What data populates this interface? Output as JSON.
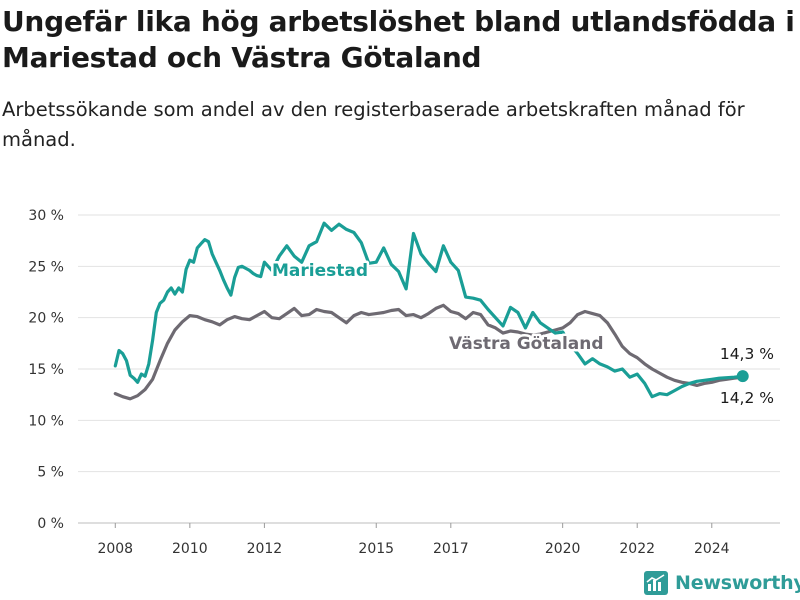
{
  "title": "Ungefär lika hög arbetslöshet bland utlandsfödda i Mariestad och Västra Götaland",
  "subtitle": "Arbetssökande som andel av den registerbaserade arbetskraften månad för månad.",
  "brand": "Newsworthy",
  "colors": {
    "mariestad": "#1a9e96",
    "vastra": "#6e6a72",
    "grid": "#e2e2e2",
    "brand": "#2f9c98"
  },
  "chart_data": {
    "type": "line",
    "title": "Ungefär lika hög arbetslöshet bland utlandsfödda i Mariestad och Västra Götaland",
    "subtitle": "Arbetssökande som andel av den registerbaserade arbetskraften månad för månad.",
    "xlim": [
      2007.0,
      2025.83
    ],
    "ylim": [
      0,
      30
    ],
    "y_ticks": [
      0,
      5,
      10,
      15,
      20,
      25,
      30
    ],
    "y_tick_labels": [
      "0 %",
      "5 %",
      "10 %",
      "15 %",
      "20 %",
      "25 %",
      "30 %"
    ],
    "x_ticks": [
      2008,
      2010,
      2012,
      2015,
      2017,
      2020,
      2022,
      2024
    ],
    "x_tick_labels": [
      "2008",
      "2010",
      "2012",
      "2015",
      "2017",
      "2020",
      "2022",
      "2024"
    ],
    "grid": "horizontal",
    "legend": "inline labels",
    "series": [
      {
        "name": "Mariestad",
        "color": "#1a9e96",
        "label_value": "14,3 %",
        "x": [
          2008.0,
          2008.1,
          2008.2,
          2008.3,
          2008.4,
          2008.5,
          2008.6,
          2008.7,
          2008.8,
          2008.9,
          2009.0,
          2009.1,
          2009.2,
          2009.3,
          2009.4,
          2009.5,
          2009.6,
          2009.7,
          2009.8,
          2009.9,
          2010.0,
          2010.1,
          2010.2,
          2010.3,
          2010.4,
          2010.5,
          2010.6,
          2010.7,
          2010.8,
          2010.9,
          2011.0,
          2011.1,
          2011.2,
          2011.3,
          2011.4,
          2011.5,
          2011.6,
          2011.7,
          2011.8,
          2011.9,
          2012.0,
          2012.2,
          2012.4,
          2012.6,
          2012.8,
          2013.0,
          2013.2,
          2013.4,
          2013.6,
          2013.8,
          2014.0,
          2014.2,
          2014.4,
          2014.6,
          2014.8,
          2015.0,
          2015.2,
          2015.4,
          2015.6,
          2015.8,
          2016.0,
          2016.2,
          2016.4,
          2016.6,
          2016.8,
          2017.0,
          2017.2,
          2017.4,
          2017.6,
          2017.8,
          2018.0,
          2018.2,
          2018.4,
          2018.6,
          2018.8,
          2019.0,
          2019.2,
          2019.4,
          2019.6,
          2019.8,
          2020.0,
          2020.2,
          2020.4,
          2020.6,
          2020.8,
          2021.0,
          2021.2,
          2021.4,
          2021.6,
          2021.8,
          2022.0,
          2022.2,
          2022.4,
          2022.6,
          2022.8,
          2023.0,
          2023.2,
          2023.4,
          2023.6,
          2023.8,
          2024.0,
          2024.2,
          2024.4,
          2024.6,
          2024.83
        ],
        "y": [
          15.3,
          16.8,
          16.5,
          15.8,
          14.4,
          14.1,
          13.7,
          14.5,
          14.3,
          15.5,
          17.8,
          20.5,
          21.4,
          21.7,
          22.5,
          22.9,
          22.3,
          22.9,
          22.5,
          24.7,
          25.6,
          25.4,
          26.8,
          27.2,
          27.6,
          27.4,
          26.2,
          25.4,
          24.6,
          23.7,
          22.9,
          22.2,
          23.9,
          24.9,
          25.0,
          24.8,
          24.6,
          24.3,
          24.1,
          24.0,
          25.4,
          24.6,
          26.0,
          27.0,
          26.0,
          25.4,
          27.0,
          27.4,
          29.2,
          28.5,
          29.1,
          28.6,
          28.3,
          27.3,
          25.3,
          25.4,
          26.8,
          25.2,
          24.5,
          22.8,
          28.2,
          26.2,
          25.3,
          24.5,
          27.0,
          25.4,
          24.6,
          22.0,
          21.9,
          21.7,
          20.8,
          20.0,
          19.2,
          21.0,
          20.5,
          19.0,
          20.5,
          19.5,
          19.0,
          18.5,
          18.6,
          17.4,
          16.5,
          15.5,
          16.0,
          15.5,
          15.2,
          14.8,
          15.0,
          14.2,
          14.5,
          13.6,
          12.3,
          12.6,
          12.5,
          12.9,
          13.3,
          13.6,
          13.8,
          13.9,
          14.0,
          14.1,
          14.15,
          14.2,
          14.3
        ]
      },
      {
        "name": "Västra Götaland",
        "color": "#6e6a72",
        "label_value": "14,2 %",
        "x": [
          2008.0,
          2008.2,
          2008.4,
          2008.6,
          2008.8,
          2009.0,
          2009.2,
          2009.4,
          2009.6,
          2009.8,
          2010.0,
          2010.2,
          2010.4,
          2010.6,
          2010.8,
          2011.0,
          2011.2,
          2011.4,
          2011.6,
          2011.8,
          2012.0,
          2012.2,
          2012.4,
          2012.6,
          2012.8,
          2013.0,
          2013.2,
          2013.4,
          2013.6,
          2013.8,
          2014.0,
          2014.2,
          2014.4,
          2014.6,
          2014.8,
          2015.0,
          2015.2,
          2015.4,
          2015.6,
          2015.8,
          2016.0,
          2016.2,
          2016.4,
          2016.6,
          2016.8,
          2017.0,
          2017.2,
          2017.4,
          2017.6,
          2017.8,
          2018.0,
          2018.2,
          2018.4,
          2018.6,
          2018.8,
          2019.0,
          2019.2,
          2019.4,
          2019.6,
          2019.8,
          2020.0,
          2020.2,
          2020.4,
          2020.6,
          2020.8,
          2021.0,
          2021.2,
          2021.4,
          2021.6,
          2021.8,
          2022.0,
          2022.2,
          2022.4,
          2022.6,
          2022.8,
          2023.0,
          2023.2,
          2023.4,
          2023.6,
          2023.8,
          2024.0,
          2024.2,
          2024.4,
          2024.6,
          2024.83
        ],
        "y": [
          12.6,
          12.3,
          12.1,
          12.4,
          13.0,
          14.0,
          15.8,
          17.5,
          18.8,
          19.6,
          20.2,
          20.1,
          19.8,
          19.6,
          19.3,
          19.8,
          20.1,
          19.9,
          19.8,
          20.2,
          20.6,
          20.0,
          19.9,
          20.4,
          20.9,
          20.2,
          20.3,
          20.8,
          20.6,
          20.5,
          20.0,
          19.5,
          20.2,
          20.5,
          20.3,
          20.4,
          20.5,
          20.7,
          20.8,
          20.2,
          20.3,
          20.0,
          20.4,
          20.9,
          21.2,
          20.6,
          20.4,
          19.9,
          20.5,
          20.3,
          19.3,
          19.0,
          18.5,
          18.7,
          18.6,
          18.4,
          18.3,
          18.4,
          18.6,
          18.8,
          19.0,
          19.5,
          20.3,
          20.6,
          20.4,
          20.2,
          19.5,
          18.4,
          17.2,
          16.5,
          16.1,
          15.5,
          15.0,
          14.6,
          14.2,
          13.9,
          13.7,
          13.6,
          13.4,
          13.6,
          13.7,
          13.9,
          14.0,
          14.1,
          14.2
        ]
      }
    ],
    "annotations": [
      {
        "text": "Mariestad",
        "series": "Mariestad"
      },
      {
        "text": "Västra Götaland",
        "series": "Västra Götaland"
      },
      {
        "text": "14,3 %",
        "series": "Mariestad"
      },
      {
        "text": "14,2 %",
        "series": "Västra Götaland"
      }
    ]
  }
}
